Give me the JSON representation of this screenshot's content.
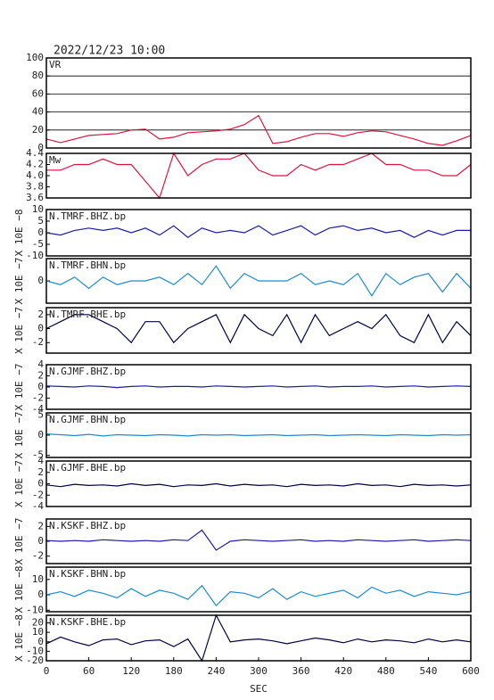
{
  "chart_data": [
    {
      "type": "line",
      "title": "2022/12/23 10:00",
      "name": "VR",
      "color": "#dc143c",
      "grid": true,
      "x": [
        0,
        20,
        40,
        60,
        80,
        100,
        120,
        140,
        160,
        180,
        200,
        220,
        240,
        260,
        280,
        300,
        320,
        340,
        360,
        380,
        400,
        420,
        440,
        460,
        480,
        500,
        520,
        540,
        560,
        580,
        600
      ],
      "values": [
        10,
        6,
        10,
        14,
        15,
        16,
        20,
        21,
        10,
        12,
        17,
        18,
        19,
        21,
        26,
        36,
        5,
        7,
        12,
        16,
        16,
        13,
        17,
        19,
        18,
        14,
        10,
        5,
        3,
        8,
        14
      ],
      "xlim": [
        0,
        600
      ],
      "ylim": [
        0,
        100
      ],
      "yticks": [
        0,
        20,
        40,
        60,
        80,
        100
      ]
    },
    {
      "type": "line",
      "name": "Mw",
      "color": "#dc143c",
      "x": [
        0,
        20,
        40,
        60,
        80,
        100,
        120,
        140,
        160,
        180,
        200,
        220,
        240,
        260,
        280,
        300,
        320,
        340,
        360,
        380,
        400,
        420,
        440,
        460,
        480,
        500,
        520,
        540,
        560,
        580,
        600
      ],
      "values": [
        4.1,
        4.1,
        4.2,
        4.2,
        4.3,
        4.2,
        4.2,
        3.9,
        3.6,
        4.4,
        4.0,
        4.2,
        4.3,
        4.3,
        4.4,
        4.1,
        4.0,
        4.0,
        4.2,
        4.1,
        4.2,
        4.2,
        4.3,
        4.4,
        4.2,
        4.2,
        4.1,
        4.1,
        4.0,
        4.0,
        4.2
      ],
      "xlim": [
        0,
        600
      ],
      "ylim": [
        3.6,
        4.4
      ],
      "yticks": [
        3.6,
        3.8,
        {
          "value": 4,
          "label": "4.0"
        },
        4.2,
        4.4
      ]
    },
    {
      "type": "line",
      "name": "N.TMRF.BHZ.bp",
      "ylabel": "X 10E −8",
      "color": "#1c1ca8",
      "x": [
        0,
        20,
        40,
        60,
        80,
        100,
        120,
        140,
        160,
        180,
        200,
        220,
        240,
        260,
        280,
        300,
        320,
        340,
        360,
        380,
        400,
        420,
        440,
        460,
        480,
        500,
        520,
        540,
        560,
        580,
        600
      ],
      "values": [
        0,
        -1,
        1,
        2,
        1,
        2,
        0,
        2,
        -1,
        3,
        -2,
        2,
        0,
        1,
        0,
        3,
        -1,
        1,
        3,
        -1,
        2,
        3,
        1,
        2,
        0,
        1,
        -2,
        1,
        -1,
        1,
        1
      ],
      "xlim": [
        0,
        600
      ],
      "ylim": [
        -10,
        10
      ],
      "yticks": [
        -10,
        -5,
        0,
        5,
        10
      ]
    },
    {
      "type": "line",
      "name": "N.TMRF.BHN.bp",
      "ylabel": "X 10E −7",
      "color": "#1e8ad0",
      "x": [
        0,
        20,
        40,
        60,
        80,
        100,
        120,
        140,
        160,
        180,
        200,
        220,
        240,
        260,
        280,
        300,
        320,
        340,
        360,
        380,
        400,
        420,
        440,
        460,
        480,
        500,
        520,
        540,
        560,
        580,
        600
      ],
      "values": [
        0,
        -1,
        1,
        -2,
        1,
        -1,
        0,
        0,
        1,
        -1,
        2,
        -1,
        4,
        -2,
        2,
        0,
        0,
        0,
        2,
        -1,
        0,
        -1,
        2,
        -4,
        2,
        -1,
        1,
        2,
        -3,
        2,
        -2
      ],
      "xlim": [
        0,
        600
      ],
      "ylim": [
        -6,
        6
      ],
      "yticks": [
        0
      ]
    },
    {
      "type": "line",
      "name": "N.TMRF.BHE.bp",
      "ylabel": "X 10E −7",
      "color": "#000040",
      "x": [
        0,
        20,
        40,
        60,
        80,
        100,
        120,
        140,
        160,
        180,
        200,
        220,
        240,
        260,
        280,
        300,
        320,
        340,
        360,
        380,
        400,
        420,
        440,
        460,
        480,
        500,
        520,
        540,
        560,
        580,
        600
      ],
      "values": [
        0,
        1,
        2,
        2,
        1,
        0,
        -2,
        1,
        1,
        -2,
        0,
        1,
        2,
        -2,
        2,
        0,
        -1,
        2,
        -2,
        2,
        -1,
        0,
        1,
        0,
        2,
        -1,
        -2,
        2,
        -2,
        1,
        -1
      ],
      "xlim": [
        0,
        600
      ],
      "ylim": [
        -3.5,
        3
      ],
      "yticks": [
        -2,
        0,
        2
      ]
    },
    {
      "type": "line",
      "name": "N.GJMF.BHZ.bp",
      "ylabel": "X 10E −7",
      "color": "#1c1ca8",
      "x": [
        0,
        20,
        40,
        60,
        80,
        100,
        120,
        140,
        160,
        180,
        200,
        220,
        240,
        260,
        280,
        300,
        320,
        340,
        360,
        380,
        400,
        420,
        440,
        460,
        480,
        500,
        520,
        540,
        560,
        580,
        600
      ],
      "values": [
        0.2,
        0.1,
        0,
        0.2,
        0.1,
        -0.1,
        0.1,
        0.2,
        0,
        0.1,
        0.1,
        0,
        0.2,
        0.1,
        0,
        0.1,
        0.2,
        0,
        0.1,
        0.2,
        0,
        0.1,
        0.1,
        0.2,
        0,
        0.1,
        0.2,
        0,
        0.1,
        0.2,
        0.1
      ],
      "xlim": [
        0,
        600
      ],
      "ylim": [
        -4,
        4
      ],
      "yticks": [
        -4,
        -2,
        0,
        2,
        4
      ]
    },
    {
      "type": "line",
      "name": "N.GJMF.BHN.bp",
      "ylabel": "X 10E −7",
      "color": "#1e8ad0",
      "x": [
        0,
        20,
        40,
        60,
        80,
        100,
        120,
        140,
        160,
        180,
        200,
        220,
        240,
        260,
        280,
        300,
        320,
        340,
        360,
        380,
        400,
        420,
        440,
        460,
        480,
        500,
        520,
        540,
        560,
        580,
        600
      ],
      "values": [
        0.3,
        0.1,
        -0.1,
        0.2,
        -0.2,
        0.1,
        0,
        -0.1,
        0.1,
        0,
        -0.2,
        0.1,
        0,
        0.1,
        -0.1,
        0,
        0.1,
        -0.1,
        0,
        0.1,
        -0.1,
        0,
        0.1,
        0,
        -0.1,
        0.1,
        0,
        -0.1,
        0.1,
        0,
        0.1
      ],
      "xlim": [
        0,
        600
      ],
      "ylim": [
        -5.5,
        5.5
      ],
      "yticks": [
        -5,
        0,
        5
      ]
    },
    {
      "type": "line",
      "name": "N.GJMF.BHE.bp",
      "ylabel": "X 10E −7",
      "color": "#000040",
      "x": [
        0,
        20,
        40,
        60,
        80,
        100,
        120,
        140,
        160,
        180,
        200,
        220,
        240,
        260,
        280,
        300,
        320,
        340,
        360,
        380,
        400,
        420,
        440,
        460,
        480,
        500,
        520,
        540,
        560,
        580,
        600
      ],
      "values": [
        -0.2,
        -0.5,
        -0.1,
        -0.3,
        -0.2,
        -0.4,
        0,
        -0.3,
        -0.1,
        -0.5,
        -0.2,
        -0.3,
        0,
        -0.4,
        -0.1,
        -0.3,
        -0.2,
        -0.5,
        -0.1,
        -0.3,
        -0.2,
        -0.4,
        0,
        -0.3,
        -0.2,
        -0.5,
        -0.1,
        -0.3,
        -0.2,
        -0.4,
        -0.2
      ],
      "xlim": [
        0,
        600
      ],
      "ylim": [
        -4,
        4
      ],
      "yticks": [
        -4,
        -2,
        0,
        2,
        4
      ]
    },
    {
      "type": "line",
      "name": "N.KSKF.BHZ.bp",
      "ylabel": "X 10E −7",
      "color": "#1c1ca8",
      "x": [
        0,
        20,
        40,
        60,
        80,
        100,
        120,
        140,
        160,
        180,
        200,
        220,
        240,
        260,
        280,
        300,
        320,
        340,
        360,
        380,
        400,
        420,
        440,
        460,
        480,
        500,
        520,
        540,
        560,
        580,
        600
      ],
      "values": [
        0.1,
        0,
        0.1,
        0,
        0.2,
        0.1,
        0,
        0.1,
        0,
        0.2,
        0.1,
        1.5,
        -1.2,
        0,
        0.2,
        0.1,
        0,
        0.1,
        0.2,
        0,
        0.1,
        0,
        0.2,
        0.1,
        0,
        0.1,
        0.2,
        0,
        0.1,
        0.2,
        0.1
      ],
      "xlim": [
        0,
        600
      ],
      "ylim": [
        -3,
        3
      ],
      "yticks": [
        -2,
        0,
        2
      ]
    },
    {
      "type": "line",
      "name": "N.KSKF.BHN.bp",
      "ylabel": "X 10E −8",
      "color": "#1e8ad0",
      "x": [
        0,
        20,
        40,
        60,
        80,
        100,
        120,
        140,
        160,
        180,
        200,
        220,
        240,
        260,
        280,
        300,
        320,
        340,
        360,
        380,
        400,
        420,
        440,
        460,
        480,
        500,
        520,
        540,
        560,
        580,
        600
      ],
      "values": [
        0,
        2,
        -1,
        3,
        1,
        -2,
        4,
        -1,
        3,
        1,
        -3,
        6,
        -7,
        2,
        1,
        -2,
        4,
        -3,
        2,
        -1,
        1,
        3,
        -2,
        5,
        1,
        3,
        -1,
        2,
        1,
        0,
        2
      ],
      "xlim": [
        0,
        600
      ],
      "ylim": [
        -11,
        18
      ],
      "yticks": [
        -10,
        0,
        10
      ]
    },
    {
      "type": "line",
      "name": "N.KSKF.BHE.bp",
      "ylabel": "X 10E −8",
      "color": "#000040",
      "xlabel": "SEC",
      "x": [
        0,
        20,
        40,
        60,
        80,
        100,
        120,
        140,
        160,
        180,
        200,
        220,
        240,
        260,
        280,
        300,
        320,
        340,
        360,
        380,
        400,
        420,
        440,
        460,
        480,
        500,
        520,
        540,
        560,
        580,
        600
      ],
      "values": [
        -2,
        5,
        0,
        -4,
        2,
        3,
        -3,
        1,
        2,
        -5,
        3,
        -20,
        28,
        0,
        2,
        3,
        1,
        -2,
        1,
        4,
        2,
        -1,
        3,
        0,
        2,
        1,
        -1,
        3,
        0,
        2,
        0
      ],
      "xlim": [
        0,
        600
      ],
      "ylim": [
        -20,
        28
      ],
      "yticks": [
        -20,
        -10,
        0,
        10,
        20
      ],
      "xticks": [
        0,
        60,
        120,
        180,
        240,
        300,
        360,
        420,
        480,
        540,
        600
      ]
    }
  ]
}
